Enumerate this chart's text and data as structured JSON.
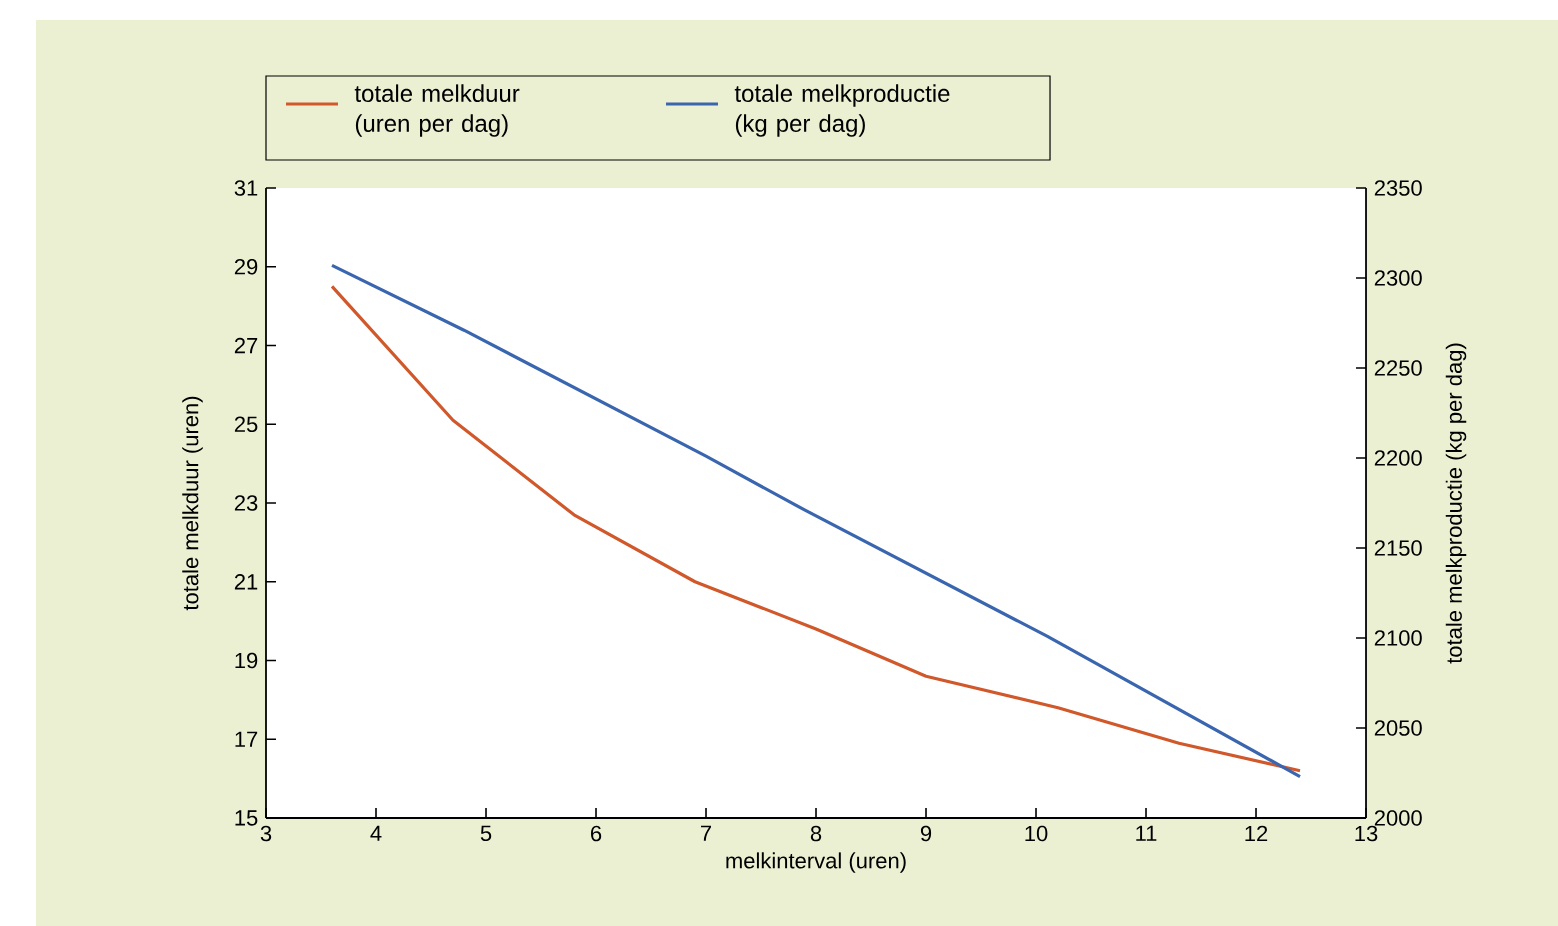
{
  "chart_data": {
    "type": "line",
    "xlabel": "melkinterval (uren)",
    "ylabel": "totale melkduur (uren)",
    "y2label": "totale melkproductie (kg per dag)",
    "series": [
      {
        "name": "totale melkduur (uren per dag)",
        "color": "#d0582a",
        "x": [
          3.6,
          4.7,
          5.8,
          6.9,
          8.0,
          9.0,
          10.2,
          11.3,
          12.4
        ],
        "values": [
          28.5,
          25.1,
          22.7,
          21.0,
          19.8,
          18.6,
          17.8,
          16.9,
          16.2
        ]
      },
      {
        "name": "totale melkproductie (kg per dag)",
        "color": "#3a66b0",
        "axis": "y2",
        "x": [
          3.6,
          4.8,
          7.0,
          7.9,
          10.1,
          12.4
        ],
        "values": [
          2307,
          2271,
          2201,
          2171,
          2101,
          2023
        ]
      }
    ],
    "xlim": [
      3,
      13
    ],
    "xticks": [
      3,
      4,
      5,
      6,
      7,
      8,
      9,
      10,
      11,
      12,
      13
    ],
    "ylim": [
      15,
      31
    ],
    "yticks": [
      15,
      17,
      19,
      21,
      23,
      25,
      27,
      29,
      31
    ],
    "y2lim": [
      2000,
      2350
    ],
    "y2ticks": [
      2000,
      2050,
      2100,
      2150,
      2200,
      2250,
      2300,
      2350
    ],
    "grid": false,
    "marker": "none",
    "line_style": "solid",
    "legend": "top"
  }
}
